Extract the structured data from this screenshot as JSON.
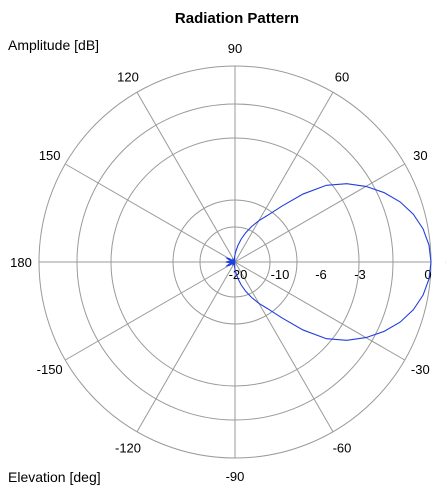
{
  "chart_data": {
    "type": "polar",
    "title": "Radiation Pattern",
    "radial_axis_label": "Amplitude [dB]",
    "angular_axis_label": "Elevation [deg]",
    "radial_ticks": [
      "-20",
      "-10",
      "-6",
      "-3",
      "0"
    ],
    "radial_tick_values": [
      -20,
      -10,
      -6,
      -3,
      0
    ],
    "angle_ticks": [
      {
        "angle": 0,
        "label": "0"
      },
      {
        "angle": 30,
        "label": "30"
      },
      {
        "angle": 60,
        "label": "60"
      },
      {
        "angle": 90,
        "label": "90"
      },
      {
        "angle": 120,
        "label": "120"
      },
      {
        "angle": 150,
        "label": "150"
      },
      {
        "angle": 180,
        "label": "180"
      },
      {
        "angle": -150,
        "label": "-150"
      },
      {
        "angle": -120,
        "label": "-120"
      },
      {
        "angle": -90,
        "label": "-90"
      },
      {
        "angle": -60,
        "label": "-60"
      },
      {
        "angle": -30,
        "label": "-30"
      }
    ],
    "grid": true,
    "series": [
      {
        "color": "#1f3fe0",
        "angle_deg": [
          0,
          5,
          10,
          15,
          20,
          25,
          30,
          35,
          40,
          45,
          50,
          55,
          60,
          65,
          70,
          75,
          80,
          85,
          90,
          95,
          100,
          105,
          110,
          115,
          120,
          125,
          130,
          135,
          140,
          145,
          150,
          155,
          160,
          165,
          170,
          175,
          180,
          -175,
          -170,
          -165,
          -160,
          -155,
          -150,
          -145,
          -140,
          -135,
          -130,
          -125,
          -120,
          -115,
          -110,
          -105,
          -100,
          -95,
          -90,
          -85,
          -80,
          -75,
          -70,
          -65,
          -60,
          -55,
          -50,
          -45,
          -40,
          -35,
          -30,
          -25,
          -20,
          -15,
          -10,
          -5
        ],
        "amplitude_db": [
          0,
          -0.1,
          -0.4,
          -0.9,
          -1.6,
          -2.5,
          -3.6,
          -4.9,
          -6.3,
          -7.8,
          -9.3,
          -10.8,
          -12.3,
          -13.7,
          -15.0,
          -16.2,
          -17.3,
          -18.2,
          -18.8,
          -19.2,
          -19.5,
          -19.8,
          -20,
          -20,
          -19.6,
          -19.3,
          -19.6,
          -19.9,
          -20,
          -19.7,
          -18.9,
          -18.6,
          -19.0,
          -19.5,
          -19.8,
          -19.0,
          -18.5,
          -19.0,
          -19.8,
          -19.5,
          -19.0,
          -18.6,
          -18.9,
          -19.7,
          -20,
          -19.9,
          -19.6,
          -19.3,
          -19.6,
          -20,
          -20,
          -19.8,
          -19.5,
          -19.2,
          -18.8,
          -18.2,
          -17.3,
          -16.2,
          -15.0,
          -13.7,
          -12.3,
          -10.8,
          -9.3,
          -7.8,
          -6.3,
          -4.9,
          -3.6,
          -2.5,
          -1.6,
          -0.9,
          -0.4,
          -0.1
        ]
      }
    ]
  }
}
